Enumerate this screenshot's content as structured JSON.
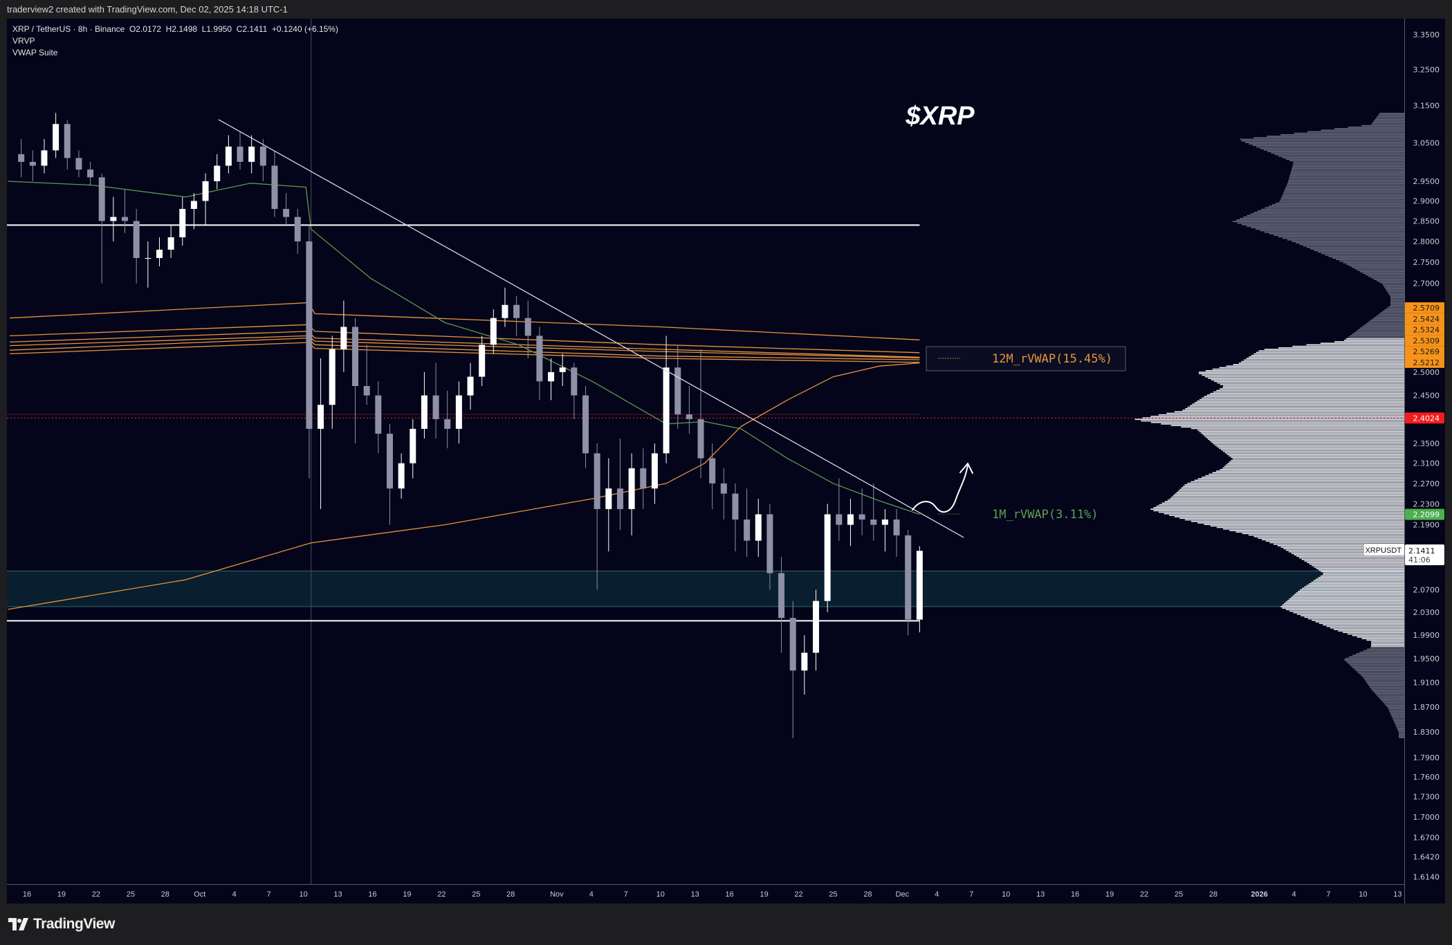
{
  "header": {
    "created_by": "traderview2 created with TradingView.com, Dec 02, 2025 14:18 UTC-1",
    "symbol_line": "XRP / TetherUS · 8h · Binance  O2.0172  H2.1498  L1.9950  C2.1411  +0.1240 (+6.15%)",
    "indicators": [
      "VRVP",
      "VWAP Suite"
    ]
  },
  "footer": {
    "brand": "TradingView"
  },
  "colors": {
    "background": "#04051a",
    "up_candle": "#ffffff",
    "down_candle": "#8e90a6",
    "rvwap_12m": "#e8953a",
    "rvwap_1m": "#5f9a4e",
    "poc_red": "#ff2a2a",
    "zone": "#0b2433",
    "profile_value_area": "#f2f2f6",
    "profile_outside": "#6d7083"
  },
  "chart_data": {
    "type": "candlestick",
    "title": "$XRP",
    "scale": "log",
    "ylim": [
      1.6,
      3.4
    ],
    "xlim": [
      "2025-09-14T12:00",
      "2026-01-13T00:00"
    ],
    "interval_note_shown": "8h",
    "candles_columns": [
      "date",
      "open",
      "high",
      "low",
      "close"
    ],
    "candles": [
      [
        "2025-09-15",
        3.02,
        3.06,
        2.96,
        3.0
      ],
      [
        "2025-09-16",
        3.0,
        3.03,
        2.95,
        2.99
      ],
      [
        "2025-09-17",
        2.99,
        3.06,
        2.97,
        3.03
      ],
      [
        "2025-09-18",
        3.03,
        3.13,
        3.01,
        3.1
      ],
      [
        "2025-09-19",
        3.1,
        3.11,
        2.98,
        3.01
      ],
      [
        "2025-09-20",
        3.01,
        3.03,
        2.96,
        2.98
      ],
      [
        "2025-09-21",
        2.98,
        3.0,
        2.94,
        2.96
      ],
      [
        "2025-09-22",
        2.96,
        2.97,
        2.7,
        2.85
      ],
      [
        "2025-09-23",
        2.85,
        2.91,
        2.8,
        2.86
      ],
      [
        "2025-09-24",
        2.86,
        2.93,
        2.82,
        2.85
      ],
      [
        "2025-09-25",
        2.85,
        2.88,
        2.7,
        2.76
      ],
      [
        "2025-09-26",
        2.76,
        2.8,
        2.69,
        2.76
      ],
      [
        "2025-09-27",
        2.76,
        2.81,
        2.74,
        2.78
      ],
      [
        "2025-09-28",
        2.78,
        2.84,
        2.76,
        2.81
      ],
      [
        "2025-09-29",
        2.81,
        2.91,
        2.79,
        2.88
      ],
      [
        "2025-09-30",
        2.88,
        2.92,
        2.83,
        2.9
      ],
      [
        "2025-10-01",
        2.9,
        2.97,
        2.84,
        2.95
      ],
      [
        "2025-10-02",
        2.95,
        3.02,
        2.93,
        2.99
      ],
      [
        "2025-10-03",
        2.99,
        3.07,
        2.97,
        3.04
      ],
      [
        "2025-10-04",
        3.04,
        3.08,
        2.98,
        3.0
      ],
      [
        "2025-10-05",
        3.0,
        3.07,
        2.97,
        3.04
      ],
      [
        "2025-10-06",
        3.04,
        3.06,
        2.95,
        2.99
      ],
      [
        "2025-10-07",
        2.99,
        3.03,
        2.86,
        2.88
      ],
      [
        "2025-10-08",
        2.88,
        2.92,
        2.84,
        2.86
      ],
      [
        "2025-10-09",
        2.86,
        2.88,
        2.77,
        2.8
      ],
      [
        "2025-10-10",
        2.8,
        2.84,
        2.28,
        2.38
      ],
      [
        "2025-10-11",
        2.38,
        2.53,
        2.22,
        2.43
      ],
      [
        "2025-10-12",
        2.43,
        2.58,
        2.38,
        2.55
      ],
      [
        "2025-10-13",
        2.55,
        2.66,
        2.5,
        2.6
      ],
      [
        "2025-10-14",
        2.6,
        2.62,
        2.35,
        2.47
      ],
      [
        "2025-10-15",
        2.47,
        2.56,
        2.43,
        2.45
      ],
      [
        "2025-10-16",
        2.45,
        2.48,
        2.33,
        2.37
      ],
      [
        "2025-10-17",
        2.37,
        2.39,
        2.19,
        2.26
      ],
      [
        "2025-10-18",
        2.26,
        2.33,
        2.24,
        2.31
      ],
      [
        "2025-10-19",
        2.31,
        2.4,
        2.28,
        2.38
      ],
      [
        "2025-10-20",
        2.38,
        2.5,
        2.36,
        2.45
      ],
      [
        "2025-10-21",
        2.45,
        2.52,
        2.36,
        2.4
      ],
      [
        "2025-10-22",
        2.4,
        2.46,
        2.34,
        2.38
      ],
      [
        "2025-10-23",
        2.38,
        2.48,
        2.35,
        2.45
      ],
      [
        "2025-10-24",
        2.45,
        2.52,
        2.42,
        2.49
      ],
      [
        "2025-10-25",
        2.49,
        2.58,
        2.47,
        2.56
      ],
      [
        "2025-10-26",
        2.56,
        2.64,
        2.54,
        2.62
      ],
      [
        "2025-10-27",
        2.62,
        2.69,
        2.6,
        2.65
      ],
      [
        "2025-10-28",
        2.65,
        2.67,
        2.58,
        2.62
      ],
      [
        "2025-10-29",
        2.62,
        2.66,
        2.53,
        2.58
      ],
      [
        "2025-10-30",
        2.58,
        2.6,
        2.44,
        2.48
      ],
      [
        "2025-10-31",
        2.48,
        2.53,
        2.44,
        2.5
      ],
      [
        "2025-11-01",
        2.5,
        2.54,
        2.47,
        2.51
      ],
      [
        "2025-11-02",
        2.51,
        2.52,
        2.4,
        2.45
      ],
      [
        "2025-11-03",
        2.45,
        2.47,
        2.3,
        2.33
      ],
      [
        "2025-11-04",
        2.33,
        2.35,
        2.07,
        2.22
      ],
      [
        "2025-11-05",
        2.22,
        2.32,
        2.14,
        2.26
      ],
      [
        "2025-11-06",
        2.26,
        2.36,
        2.18,
        2.22
      ],
      [
        "2025-11-07",
        2.22,
        2.33,
        2.17,
        2.3
      ],
      [
        "2025-11-08",
        2.3,
        2.34,
        2.22,
        2.26
      ],
      [
        "2025-11-09",
        2.26,
        2.35,
        2.23,
        2.33
      ],
      [
        "2025-11-10",
        2.33,
        2.58,
        2.31,
        2.51
      ],
      [
        "2025-11-11",
        2.51,
        2.56,
        2.38,
        2.41
      ],
      [
        "2025-11-12",
        2.41,
        2.47,
        2.37,
        2.4
      ],
      [
        "2025-11-13",
        2.4,
        2.55,
        2.28,
        2.32
      ],
      [
        "2025-11-14",
        2.32,
        2.35,
        2.22,
        2.27
      ],
      [
        "2025-11-15",
        2.27,
        2.3,
        2.2,
        2.25
      ],
      [
        "2025-11-16",
        2.25,
        2.27,
        2.14,
        2.2
      ],
      [
        "2025-11-17",
        2.2,
        2.26,
        2.13,
        2.16
      ],
      [
        "2025-11-18",
        2.16,
        2.24,
        2.13,
        2.21
      ],
      [
        "2025-11-19",
        2.21,
        2.23,
        2.07,
        2.1
      ],
      [
        "2025-11-20",
        2.1,
        2.13,
        1.96,
        2.02
      ],
      [
        "2025-11-21",
        2.02,
        2.05,
        1.82,
        1.93
      ],
      [
        "2025-11-22",
        1.93,
        1.99,
        1.89,
        1.96
      ],
      [
        "2025-11-23",
        1.96,
        2.07,
        1.93,
        2.05
      ],
      [
        "2025-11-24",
        2.05,
        2.23,
        2.03,
        2.21
      ],
      [
        "2025-11-25",
        2.21,
        2.28,
        2.16,
        2.19
      ],
      [
        "2025-11-26",
        2.19,
        2.24,
        2.15,
        2.21
      ],
      [
        "2025-11-27",
        2.21,
        2.26,
        2.17,
        2.2
      ],
      [
        "2025-11-28",
        2.2,
        2.27,
        2.16,
        2.19
      ],
      [
        "2025-11-29",
        2.19,
        2.22,
        2.14,
        2.2
      ],
      [
        "2025-11-30",
        2.2,
        2.22,
        2.13,
        2.17
      ],
      [
        "2025-12-01",
        2.17,
        2.18,
        1.99,
        2.0172
      ],
      [
        "2025-12-02",
        2.0172,
        2.1498,
        1.995,
        2.1411
      ]
    ],
    "rvwap_12m_bands": [
      [
        [
          "2025-09-14T12:00",
          2.62
        ],
        [
          "2025-10-10T10:00",
          2.655
        ],
        [
          "2025-10-11T00:00",
          2.63
        ],
        [
          "2025-11-10T00:00",
          2.6
        ],
        [
          "2025-12-02T12:00",
          2.5709
        ]
      ],
      [
        [
          "2025-09-14T12:00",
          2.58
        ],
        [
          "2025-10-10T10:00",
          2.605
        ],
        [
          "2025-10-11T00:00",
          2.59
        ],
        [
          "2025-11-10T00:00",
          2.56
        ],
        [
          "2025-12-02T12:00",
          2.5424
        ]
      ],
      [
        [
          "2025-09-14T12:00",
          2.566
        ],
        [
          "2025-10-10T10:00",
          2.59
        ],
        [
          "2025-10-11T00:00",
          2.575
        ],
        [
          "2025-11-10T00:00",
          2.55
        ],
        [
          "2025-12-02T12:00",
          2.5324
        ]
      ],
      [
        [
          "2025-09-14T12:00",
          2.558
        ],
        [
          "2025-10-10T10:00",
          2.58
        ],
        [
          "2025-10-11T00:00",
          2.568
        ],
        [
          "2025-11-10T00:00",
          2.545
        ],
        [
          "2025-12-02T12:00",
          2.5309
        ]
      ],
      [
        [
          "2025-09-14T12:00",
          2.548
        ],
        [
          "2025-10-10T10:00",
          2.575
        ],
        [
          "2025-10-11T00:00",
          2.56
        ],
        [
          "2025-11-10T00:00",
          2.535
        ],
        [
          "2025-12-02T12:00",
          2.5269
        ]
      ],
      [
        [
          "2025-09-14T12:00",
          2.54
        ],
        [
          "2025-10-10T10:00",
          2.565
        ],
        [
          "2025-10-11T00:00",
          2.552
        ],
        [
          "2025-11-10T00:00",
          2.53
        ],
        [
          "2025-12-02T12:00",
          2.5212
        ]
      ]
    ],
    "anchored_vwap": [
      [
        "2025-09-14T08:00",
        2.035
      ],
      [
        "2025-09-29T18:00",
        2.088
      ],
      [
        "2025-10-10T16:00",
        2.156
      ],
      [
        "2025-10-22T06:00",
        2.19
      ],
      [
        "2025-11-04T02:00",
        2.24
      ],
      [
        "2025-11-10T12:00",
        2.27
      ],
      [
        "2025-11-13T20:00",
        2.31
      ],
      [
        "2025-11-17T00:00",
        2.385
      ],
      [
        "2025-11-21T00:00",
        2.44
      ],
      [
        "2025-11-25T00:00",
        2.49
      ],
      [
        "2025-11-29T00:00",
        2.513
      ],
      [
        "2025-12-02T12:00",
        2.52
      ]
    ],
    "rvwap_1m": [
      [
        "2025-09-14T08:00",
        2.95
      ],
      [
        "2025-09-21T16:00",
        2.94
      ],
      [
        "2025-09-29T18:00",
        2.91
      ],
      [
        "2025-10-05T10:00",
        2.945
      ],
      [
        "2025-10-10T05:00",
        2.935
      ],
      [
        "2025-10-10T16:00",
        2.83
      ],
      [
        "2025-10-15T20:00",
        2.712
      ],
      [
        "2025-10-22T06:00",
        2.61
      ],
      [
        "2025-10-28T16:00",
        2.56
      ],
      [
        "2025-11-04T02:00",
        2.48
      ],
      [
        "2025-11-10T12:00",
        2.39
      ],
      [
        "2025-11-13T20:00",
        2.395
      ],
      [
        "2025-11-17T00:00",
        2.38
      ],
      [
        "2025-11-21T00:00",
        2.32
      ],
      [
        "2025-11-25T00:00",
        2.27
      ],
      [
        "2025-11-29T00:00",
        2.236
      ],
      [
        "2025-12-02T12:00",
        2.2099
      ]
    ],
    "trendline": [
      [
        "2025-10-02T15:00",
        3.112
      ],
      [
        "2025-12-06T08:00",
        2.166
      ]
    ],
    "horizontal_levels": [
      2.84,
      2.015
    ],
    "zone": [
      2.04,
      2.104
    ],
    "poc_level": 2.4024,
    "poc_solid_level": 2.41,
    "vertical_marker": "2025-10-10T16:00",
    "annotations": {
      "rvwap_12m_label": "12M_rVWAP(15.45%)",
      "rvwap_1m_label": "1M_rVWAP(3.11%)"
    },
    "volume_profile": {
      "value_area": [
        1.97,
        2.575
      ],
      "rows": [
        [
          1.82,
          0.02
        ],
        [
          1.83,
          0.02
        ],
        [
          1.87,
          0.06
        ],
        [
          1.9,
          0.12
        ],
        [
          1.92,
          0.15
        ],
        [
          1.95,
          0.22
        ],
        [
          1.97,
          0.12
        ],
        [
          1.98,
          0.12
        ],
        [
          2.0,
          0.25
        ],
        [
          2.02,
          0.35
        ],
        [
          2.04,
          0.45
        ],
        [
          2.07,
          0.38
        ],
        [
          2.1,
          0.29
        ],
        [
          2.12,
          0.35
        ],
        [
          2.15,
          0.45
        ],
        [
          2.17,
          0.55
        ],
        [
          2.2,
          0.79
        ],
        [
          2.22,
          0.92
        ],
        [
          2.24,
          0.85
        ],
        [
          2.27,
          0.79
        ],
        [
          2.3,
          0.66
        ],
        [
          2.32,
          0.62
        ],
        [
          2.35,
          0.69
        ],
        [
          2.38,
          0.75
        ],
        [
          2.4,
          0.98
        ],
        [
          2.42,
          0.8
        ],
        [
          2.45,
          0.72
        ],
        [
          2.47,
          0.65
        ],
        [
          2.5,
          0.75
        ],
        [
          2.52,
          0.6
        ],
        [
          2.55,
          0.52
        ],
        [
          2.57,
          0.22
        ],
        [
          2.65,
          0.05
        ],
        [
          2.67,
          0.05
        ],
        [
          2.7,
          0.08
        ],
        [
          2.75,
          0.22
        ],
        [
          2.8,
          0.4
        ],
        [
          2.85,
          0.62
        ],
        [
          2.9,
          0.45
        ],
        [
          2.95,
          0.42
        ],
        [
          3.0,
          0.4
        ],
        [
          3.03,
          0.5
        ],
        [
          3.06,
          0.6
        ],
        [
          3.1,
          0.12
        ],
        [
          3.13,
          0.09
        ]
      ]
    },
    "price_ticks": [
      "3.3500",
      "3.2500",
      "3.1500",
      "3.0500",
      "2.9500",
      "2.9000",
      "2.8500",
      "2.8000",
      "2.7500",
      "2.7000",
      "2.5000",
      "2.4500",
      "2.3500",
      "2.3100",
      "2.2700",
      "2.2300",
      "2.1900",
      "2.0700",
      "2.0300",
      "1.9900",
      "1.9500",
      "1.9100",
      "1.8700",
      "1.8300",
      "1.7900",
      "1.7600",
      "1.7300",
      "1.7000",
      "1.6700",
      "1.6420",
      "1.6140"
    ],
    "price_labels": {
      "rvwap_12m": [
        "2.5709",
        "2.5424",
        "2.5324",
        "2.5309",
        "2.5269",
        "2.5212"
      ],
      "poc": "2.4024",
      "rvwap_1m": "2.2099",
      "last": {
        "symbol": "XRPUSDT",
        "price": "2.1411",
        "countdown": "41:06"
      }
    },
    "time_ticks": [
      [
        "16",
        "2025-09-16"
      ],
      [
        "19",
        "2025-09-19"
      ],
      [
        "22",
        "2025-09-22"
      ],
      [
        "25",
        "2025-09-25"
      ],
      [
        "28",
        "2025-09-28"
      ],
      [
        "Oct",
        "2025-10-01"
      ],
      [
        "4",
        "2025-10-04"
      ],
      [
        "7",
        "2025-10-07"
      ],
      [
        "10",
        "2025-10-10"
      ],
      [
        "13",
        "2025-10-13"
      ],
      [
        "16",
        "2025-10-16"
      ],
      [
        "19",
        "2025-10-19"
      ],
      [
        "22",
        "2025-10-22"
      ],
      [
        "25",
        "2025-10-25"
      ],
      [
        "28",
        "2025-10-28"
      ],
      [
        "Nov",
        "2025-11-01"
      ],
      [
        "4",
        "2025-11-04"
      ],
      [
        "7",
        "2025-11-07"
      ],
      [
        "10",
        "2025-11-10"
      ],
      [
        "13",
        "2025-11-13"
      ],
      [
        "16",
        "2025-11-16"
      ],
      [
        "19",
        "2025-11-19"
      ],
      [
        "22",
        "2025-11-22"
      ],
      [
        "25",
        "2025-11-25"
      ],
      [
        "28",
        "2025-11-28"
      ],
      [
        "Dec",
        "2025-12-01"
      ],
      [
        "4",
        "2025-12-04"
      ],
      [
        "7",
        "2025-12-07"
      ],
      [
        "10",
        "2025-12-10"
      ],
      [
        "13",
        "2025-12-13"
      ],
      [
        "16",
        "2025-12-16"
      ],
      [
        "19",
        "2025-12-19"
      ],
      [
        "22",
        "2025-12-22"
      ],
      [
        "25",
        "2025-12-25"
      ],
      [
        "28",
        "2025-12-28"
      ],
      [
        "2026",
        "2026-01-01"
      ],
      [
        "4",
        "2026-01-04"
      ],
      [
        "7",
        "2026-01-07"
      ],
      [
        "10",
        "2026-01-10"
      ],
      [
        "13",
        "2026-01-13"
      ]
    ]
  }
}
